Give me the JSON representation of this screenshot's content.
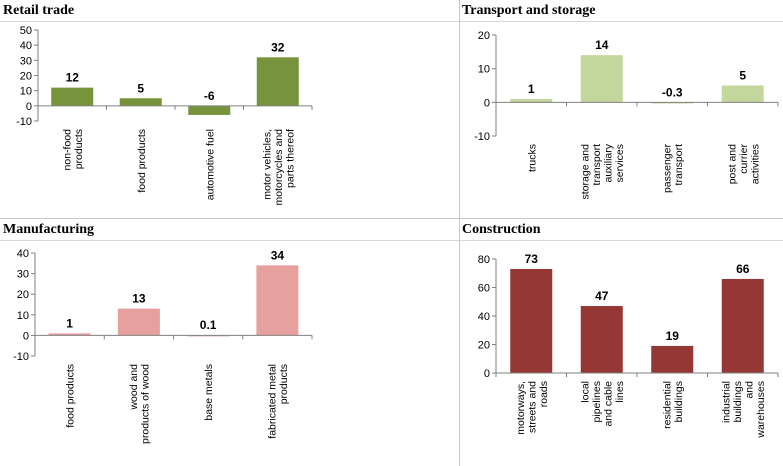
{
  "chart_data": [
    {
      "id": "retail",
      "type": "bar",
      "title": "Retail trade",
      "categories": [
        [
          "non-food",
          "products"
        ],
        [
          "food products"
        ],
        [
          "automotive fuel"
        ],
        [
          "motor vehicles,",
          "motorcycles and",
          "parts thereof"
        ]
      ],
      "values": [
        12,
        5,
        -6,
        32
      ],
      "value_labels": [
        "12",
        "5",
        "-6",
        "32"
      ],
      "ylim": [
        -10,
        50
      ],
      "yticks": [
        -10,
        0,
        10,
        20,
        30,
        40,
        50
      ],
      "ytick_labels": [
        "-10",
        "0",
        "10",
        "20",
        "30",
        "40",
        "50"
      ],
      "color": "#77933c",
      "grid": false
    },
    {
      "id": "transport",
      "type": "bar",
      "title": "Transport and storage",
      "categories": [
        [
          "trucks"
        ],
        [
          "storage and",
          "transport",
          "auxiliary",
          "services"
        ],
        [
          "passenger",
          "transport"
        ],
        [
          "post and",
          "currier",
          "activities"
        ]
      ],
      "values": [
        1,
        14,
        -0.3,
        5
      ],
      "value_labels": [
        "1",
        "14",
        "-0.3",
        "5"
      ],
      "ylim": [
        -10,
        20
      ],
      "yticks": [
        -10,
        0,
        10,
        20
      ],
      "ytick_labels": [
        "-10",
        "0",
        "10",
        "20"
      ],
      "color": "#c3d69b",
      "grid": false
    },
    {
      "id": "manufacturing",
      "type": "bar",
      "title": "Manufacturing",
      "categories": [
        [
          "food products"
        ],
        [
          "wood and",
          "products of wood"
        ],
        [
          "base metals"
        ],
        [
          "fabricated metal",
          "products"
        ]
      ],
      "values": [
        1,
        13,
        0.1,
        34
      ],
      "value_labels": [
        "1",
        "13",
        "0.1",
        "34"
      ],
      "ylim": [
        -10,
        40
      ],
      "yticks": [
        -10,
        0,
        10,
        20,
        30,
        40
      ],
      "ytick_labels": [
        "-10",
        "0",
        "10",
        "20",
        "30",
        "40"
      ],
      "color": "#e6a09e",
      "grid": false
    },
    {
      "id": "construction",
      "type": "bar",
      "title": "Construction",
      "categories": [
        [
          "motorways,",
          "streets and",
          "roads"
        ],
        [
          "local",
          "pipelines",
          "and cable",
          "lines"
        ],
        [
          "residential",
          "buildings"
        ],
        [
          "industrial",
          "buildings",
          "and",
          "warehouses"
        ]
      ],
      "values": [
        73,
        47,
        19,
        66
      ],
      "value_labels": [
        "73",
        "47",
        "19",
        "66"
      ],
      "ylim": [
        0,
        80
      ],
      "yticks": [
        0,
        20,
        40,
        60,
        80
      ],
      "ytick_labels": [
        "0",
        "20",
        "40",
        "60",
        "80"
      ],
      "color": "#953735",
      "grid": false
    }
  ]
}
